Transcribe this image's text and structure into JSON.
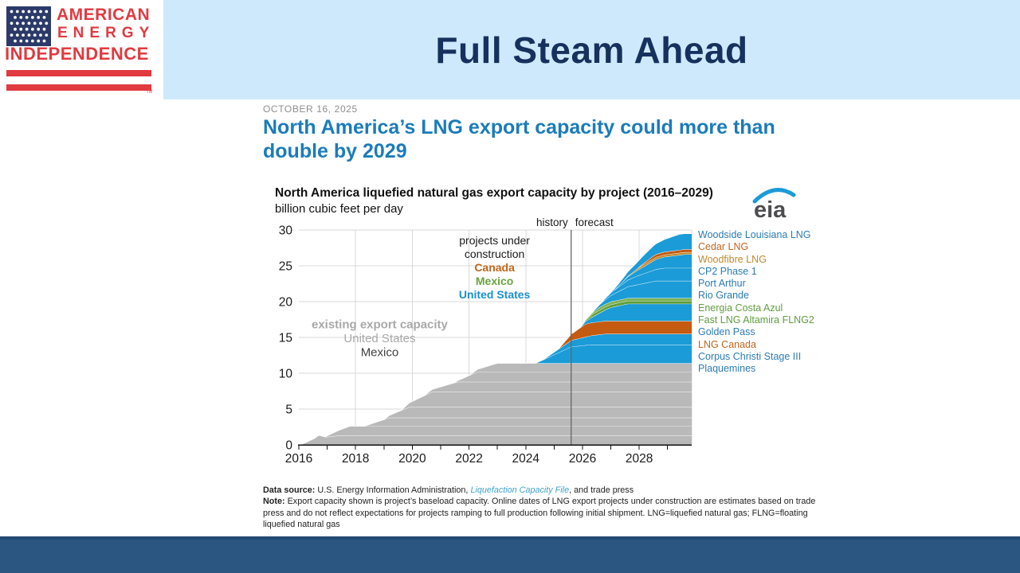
{
  "header": {
    "title": "Full Steam Ahead",
    "logo": {
      "line1": "AMERICAN",
      "line2": "ENERGY",
      "line3": "INDEPENDENCE",
      "tm": "TM"
    }
  },
  "article": {
    "date": "OCTOBER 16, 2025",
    "headline": "North America’s LNG export capacity could more than double by 2029",
    "eia_logo_text": "eia",
    "notes": {
      "source_label": "Data source:",
      "source_pre": " U.S. Energy Information Administration, ",
      "source_link": "Liquefaction Capacity File",
      "source_post": ", and trade press",
      "note_label": "Note:",
      "note_text": " Export capacity shown is project’s baseload capacity. Online dates of LNG export projects under construction are estimates based on trade press and do not reflect expectations for projects ramping to full production following initial shipment. LNG=liquefied natural gas; FLNG=floating liquefied natural gas"
    }
  },
  "chart_data": {
    "type": "area",
    "title": "North America liquefied natural gas export capacity by project (2016–2029)",
    "ylabel": "billion cubic feet per day",
    "x_domain": [
      2016,
      2029.85
    ],
    "ylim": [
      0,
      30
    ],
    "y_ticks": [
      0,
      5,
      10,
      15,
      20,
      25,
      30
    ],
    "x_tick_labels": [
      2016,
      2018,
      2020,
      2022,
      2024,
      2026,
      2028
    ],
    "tick_years_start": 2016,
    "tick_years_end": 2029,
    "grid_years": [
      2018,
      2020,
      2022,
      2024,
      2026,
      2028
    ],
    "grid_on": true,
    "legend_position": "right",
    "divider": {
      "x_year": 2025.6,
      "left_label": "history",
      "right_label": "forecast"
    },
    "existing_color": "#b9b9b9",
    "existing_total": 11.4,
    "existing_layers": [
      {
        "name": "existing-layer-1",
        "points": [
          [
            2016.05,
            0
          ],
          [
            2016.55,
            0.9
          ],
          [
            2016.7,
            1.35
          ],
          [
            2016.95,
            1.1
          ],
          [
            2017.4,
            1.3
          ],
          [
            2030,
            1.3
          ]
        ]
      },
      {
        "name": "existing-layer-2",
        "points": [
          [
            2016.9,
            0
          ],
          [
            2017.8,
            1.3
          ],
          [
            2030,
            1.3
          ]
        ]
      },
      {
        "name": "existing-layer-3",
        "points": [
          [
            2018.3,
            0
          ],
          [
            2019.2,
            1.2
          ],
          [
            2030,
            1.2
          ]
        ]
      },
      {
        "name": "existing-layer-4",
        "points": [
          [
            2019.0,
            0
          ],
          [
            2019.9,
            1.5
          ],
          [
            2030,
            1.5
          ]
        ]
      },
      {
        "name": "existing-layer-5",
        "points": [
          [
            2019.6,
            0
          ],
          [
            2020.7,
            2.1
          ],
          [
            2030,
            2.1
          ]
        ]
      },
      {
        "name": "existing-layer-6",
        "points": [
          [
            2020.4,
            0
          ],
          [
            2021.6,
            1.4
          ],
          [
            2030,
            1.4
          ]
        ]
      },
      {
        "name": "existing-layer-7",
        "points": [
          [
            2021.5,
            0
          ],
          [
            2022.3,
            1.4
          ],
          [
            2030,
            1.4
          ]
        ]
      },
      {
        "name": "existing-layer-8",
        "points": [
          [
            2022.0,
            0
          ],
          [
            2023.0,
            1.2
          ],
          [
            2030,
            1.2
          ]
        ]
      }
    ],
    "projects": [
      {
        "name": "Plaquemines",
        "color": "#1b9bd7",
        "label_color": "#2b7cb2",
        "points": [
          [
            2024.35,
            0
          ],
          [
            2025.6,
            2.3
          ],
          [
            2026.3,
            2.6
          ],
          [
            2030,
            2.6
          ]
        ]
      },
      {
        "name": "Corpus Christi Stage III",
        "color": "#1b9bd7",
        "label_color": "#2b7cb2",
        "points": [
          [
            2024.6,
            0
          ],
          [
            2025.6,
            0.9
          ],
          [
            2026.8,
            1.5
          ],
          [
            2030,
            1.5
          ]
        ]
      },
      {
        "name": "LNG Canada",
        "color": "#c55a11",
        "label_color": "#c0661c",
        "points": [
          [
            2025.15,
            0
          ],
          [
            2026.1,
            1.8
          ],
          [
            2030,
            1.8
          ]
        ]
      },
      {
        "name": "Golden Pass",
        "color": "#1b9bd7",
        "label_color": "#2b7cb2",
        "points": [
          [
            2025.9,
            0
          ],
          [
            2027.0,
            1.9
          ],
          [
            2027.6,
            2.4
          ],
          [
            2030,
            2.4
          ]
        ]
      },
      {
        "name": "Fast LNG Altamira FLNG2",
        "color": "#5f9e3e",
        "label_color": "#5f9e3e",
        "points": [
          [
            2025.9,
            0
          ],
          [
            2026.4,
            0.4
          ],
          [
            2030,
            0.4
          ]
        ]
      },
      {
        "name": "Energia Costa Azul",
        "color": "#7fb254",
        "label_color": "#619f40",
        "points": [
          [
            2026.0,
            0
          ],
          [
            2026.6,
            0.4
          ],
          [
            2030,
            0.4
          ]
        ]
      },
      {
        "name": "Rio Grande",
        "color": "#1b9bd7",
        "label_color": "#2b7cb2",
        "points": [
          [
            2026.3,
            0
          ],
          [
            2027.6,
            1.6
          ],
          [
            2028.6,
            2.4
          ],
          [
            2030,
            2.4
          ]
        ]
      },
      {
        "name": "Port Arthur",
        "color": "#1b9bd7",
        "label_color": "#2b7cb2",
        "points": [
          [
            2026.6,
            0
          ],
          [
            2027.9,
            1.2
          ],
          [
            2028.9,
            1.8
          ],
          [
            2030,
            1.8
          ]
        ]
      },
      {
        "name": "CP2 Phase 1",
        "color": "#1b9bd7",
        "label_color": "#2b7cb2",
        "points": [
          [
            2027.1,
            0
          ],
          [
            2028.6,
            1.4
          ],
          [
            2029.6,
            1.9
          ],
          [
            2030,
            1.9
          ]
        ]
      },
      {
        "name": "Woodfibre LNG",
        "color": "#bf8a2e",
        "label_color": "#bd8a2f",
        "points": [
          [
            2027.4,
            0
          ],
          [
            2028.1,
            0.3
          ],
          [
            2030,
            0.3
          ]
        ]
      },
      {
        "name": "Cedar LNG",
        "color": "#c55a11",
        "label_color": "#c0661c",
        "points": [
          [
            2027.9,
            0
          ],
          [
            2028.5,
            0.4
          ],
          [
            2030,
            0.4
          ]
        ]
      },
      {
        "name": "Woodside Louisiana LNG",
        "color": "#1b9bd7",
        "label_color": "#2b7cb2",
        "points": [
          [
            2026.9,
            0
          ],
          [
            2029.4,
            2.2
          ],
          [
            2030,
            2.2
          ]
        ]
      }
    ],
    "annotations": {
      "construction": {
        "x_year": 2022.9,
        "y_start": 28.0,
        "line_h": 17,
        "font_size": 14,
        "lines": [
          {
            "text": "projects under",
            "color": "#1a1a1a",
            "bold": false
          },
          {
            "text": "construction",
            "color": "#1a1a1a",
            "bold": false
          },
          {
            "text": "Canada",
            "color": "#c0661c",
            "bold": true
          },
          {
            "text": "Mexico",
            "color": "#6aa23f",
            "bold": true
          },
          {
            "text": "United States",
            "color": "#1b8fd0",
            "bold": true
          }
        ]
      },
      "existing": {
        "x_year": 2018.85,
        "y_start": 16.3,
        "line_h": 17.5,
        "font_size": 15,
        "lines": [
          {
            "text": "existing export capacity",
            "color": "#a8a8a8",
            "bold": true
          },
          {
            "text": "United States",
            "color": "#a8a8a8",
            "bold": false
          },
          {
            "text": "Mexico",
            "color": "#3f3f3f",
            "bold": false
          }
        ]
      }
    }
  }
}
